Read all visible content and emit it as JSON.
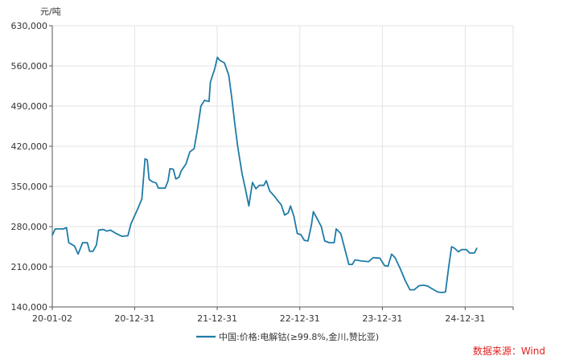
{
  "chart_data": {
    "type": "line",
    "y_unit": "元/吨",
    "ylim": [
      140000,
      630000
    ],
    "xlim": [
      "2020-01-02",
      "2025-07-31"
    ],
    "y_ticks": [
      {
        "value": 140000,
        "label": "140,000"
      },
      {
        "value": 210000,
        "label": "210,000"
      },
      {
        "value": 280000,
        "label": "280,000"
      },
      {
        "value": 350000,
        "label": "350,000"
      },
      {
        "value": 420000,
        "label": "420,000"
      },
      {
        "value": 490000,
        "label": "490,000"
      },
      {
        "value": 560000,
        "label": "560,000"
      },
      {
        "value": 630000,
        "label": "630,000"
      }
    ],
    "x_ticks": [
      {
        "date": "2020-01-02",
        "label": "20-01-02"
      },
      {
        "date": "2020-12-31",
        "label": "20-12-31"
      },
      {
        "date": "2021-12-31",
        "label": "21-12-31"
      },
      {
        "date": "2022-12-31",
        "label": "22-12-31"
      },
      {
        "date": "2023-12-31",
        "label": "23-12-31"
      },
      {
        "date": "2024-12-31",
        "label": "24-12-31"
      }
    ],
    "grid": {
      "horizontal": true,
      "vertical": true
    },
    "legend_position": "bottom",
    "series": [
      {
        "name": "中国:价格:电解钴(≥99.8%,金川,赞比亚)",
        "color": "#1f7ba6",
        "points": [
          [
            "2020-01-02",
            265000
          ],
          [
            "2020-01-15",
            276000
          ],
          [
            "2020-02-20",
            276000
          ],
          [
            "2020-03-05",
            278000
          ],
          [
            "2020-03-15",
            252000
          ],
          [
            "2020-04-10",
            246000
          ],
          [
            "2020-04-25",
            232000
          ],
          [
            "2020-05-15",
            252000
          ],
          [
            "2020-06-05",
            252000
          ],
          [
            "2020-06-15",
            237000
          ],
          [
            "2020-06-30",
            237000
          ],
          [
            "2020-07-15",
            248000
          ],
          [
            "2020-07-25",
            274000
          ],
          [
            "2020-08-15",
            275000
          ],
          [
            "2020-08-30",
            272000
          ],
          [
            "2020-09-15",
            274000
          ],
          [
            "2020-10-10",
            268000
          ],
          [
            "2020-11-05",
            263000
          ],
          [
            "2020-12-01",
            264000
          ],
          [
            "2020-12-15",
            285000
          ],
          [
            "2021-01-15",
            312000
          ],
          [
            "2021-02-01",
            328000
          ],
          [
            "2021-02-15",
            398000
          ],
          [
            "2021-02-25",
            396000
          ],
          [
            "2021-03-05",
            362000
          ],
          [
            "2021-03-20",
            358000
          ],
          [
            "2021-04-05",
            356000
          ],
          [
            "2021-04-15",
            347000
          ],
          [
            "2021-05-15",
            347000
          ],
          [
            "2021-05-28",
            360000
          ],
          [
            "2021-06-05",
            381000
          ],
          [
            "2021-06-20",
            380000
          ],
          [
            "2021-07-01",
            363000
          ],
          [
            "2021-07-15",
            366000
          ],
          [
            "2021-07-25",
            377000
          ],
          [
            "2021-08-15",
            389000
          ],
          [
            "2021-09-01",
            410000
          ],
          [
            "2021-09-20",
            416000
          ],
          [
            "2021-10-05",
            450000
          ],
          [
            "2021-10-20",
            490000
          ],
          [
            "2021-11-05",
            500000
          ],
          [
            "2021-11-25",
            498000
          ],
          [
            "2021-12-01",
            532000
          ],
          [
            "2021-12-20",
            555000
          ],
          [
            "2022-01-01",
            575000
          ],
          [
            "2022-01-10",
            570000
          ],
          [
            "2022-02-01",
            565000
          ],
          [
            "2022-02-20",
            544000
          ],
          [
            "2022-03-05",
            505000
          ],
          [
            "2022-03-20",
            455000
          ],
          [
            "2022-04-01",
            418000
          ],
          [
            "2022-04-20",
            372000
          ],
          [
            "2022-05-05",
            345000
          ],
          [
            "2022-05-20",
            316000
          ],
          [
            "2022-06-05",
            357000
          ],
          [
            "2022-06-20",
            346000
          ],
          [
            "2022-07-05",
            352000
          ],
          [
            "2022-07-25",
            352000
          ],
          [
            "2022-08-05",
            360000
          ],
          [
            "2022-08-20",
            342000
          ],
          [
            "2022-09-10",
            333000
          ],
          [
            "2022-09-25",
            325000
          ],
          [
            "2022-10-10",
            318000
          ],
          [
            "2022-10-25",
            300000
          ],
          [
            "2022-11-10",
            304000
          ],
          [
            "2022-11-20",
            316000
          ],
          [
            "2022-12-05",
            298000
          ],
          [
            "2022-12-20",
            268000
          ],
          [
            "2023-01-05",
            266000
          ],
          [
            "2023-01-20",
            256000
          ],
          [
            "2023-02-05",
            255000
          ],
          [
            "2023-02-20",
            282000
          ],
          [
            "2023-03-01",
            306000
          ],
          [
            "2023-03-20",
            292000
          ],
          [
            "2023-04-05",
            280000
          ],
          [
            "2023-04-20",
            255000
          ],
          [
            "2023-05-10",
            252000
          ],
          [
            "2023-06-01",
            252000
          ],
          [
            "2023-06-10",
            276000
          ],
          [
            "2023-06-30",
            268000
          ],
          [
            "2023-07-20",
            238000
          ],
          [
            "2023-08-05",
            214000
          ],
          [
            "2023-08-20",
            214000
          ],
          [
            "2023-09-01",
            222000
          ],
          [
            "2023-10-01",
            220000
          ],
          [
            "2023-11-01",
            219000
          ],
          [
            "2023-11-20",
            226000
          ],
          [
            "2023-12-20",
            225000
          ],
          [
            "2024-01-10",
            212000
          ],
          [
            "2024-01-25",
            211000
          ],
          [
            "2024-02-10",
            232000
          ],
          [
            "2024-02-25",
            226000
          ],
          [
            "2024-03-20",
            206000
          ],
          [
            "2024-04-10",
            186000
          ],
          [
            "2024-05-01",
            170000
          ],
          [
            "2024-05-20",
            170000
          ],
          [
            "2024-06-10",
            177000
          ],
          [
            "2024-07-01",
            178000
          ],
          [
            "2024-07-20",
            176000
          ],
          [
            "2024-08-10",
            171000
          ],
          [
            "2024-09-01",
            166000
          ],
          [
            "2024-09-20",
            165000
          ],
          [
            "2024-10-05",
            166000
          ],
          [
            "2024-10-20",
            212000
          ],
          [
            "2024-11-01",
            245000
          ],
          [
            "2024-11-15",
            242000
          ],
          [
            "2024-12-01",
            236000
          ],
          [
            "2024-12-15",
            240000
          ],
          [
            "2025-01-05",
            240000
          ],
          [
            "2025-01-20",
            234000
          ],
          [
            "2025-02-10",
            234000
          ],
          [
            "2025-02-20",
            242000
          ]
        ]
      }
    ]
  },
  "source_note": "数据来源：Wind"
}
